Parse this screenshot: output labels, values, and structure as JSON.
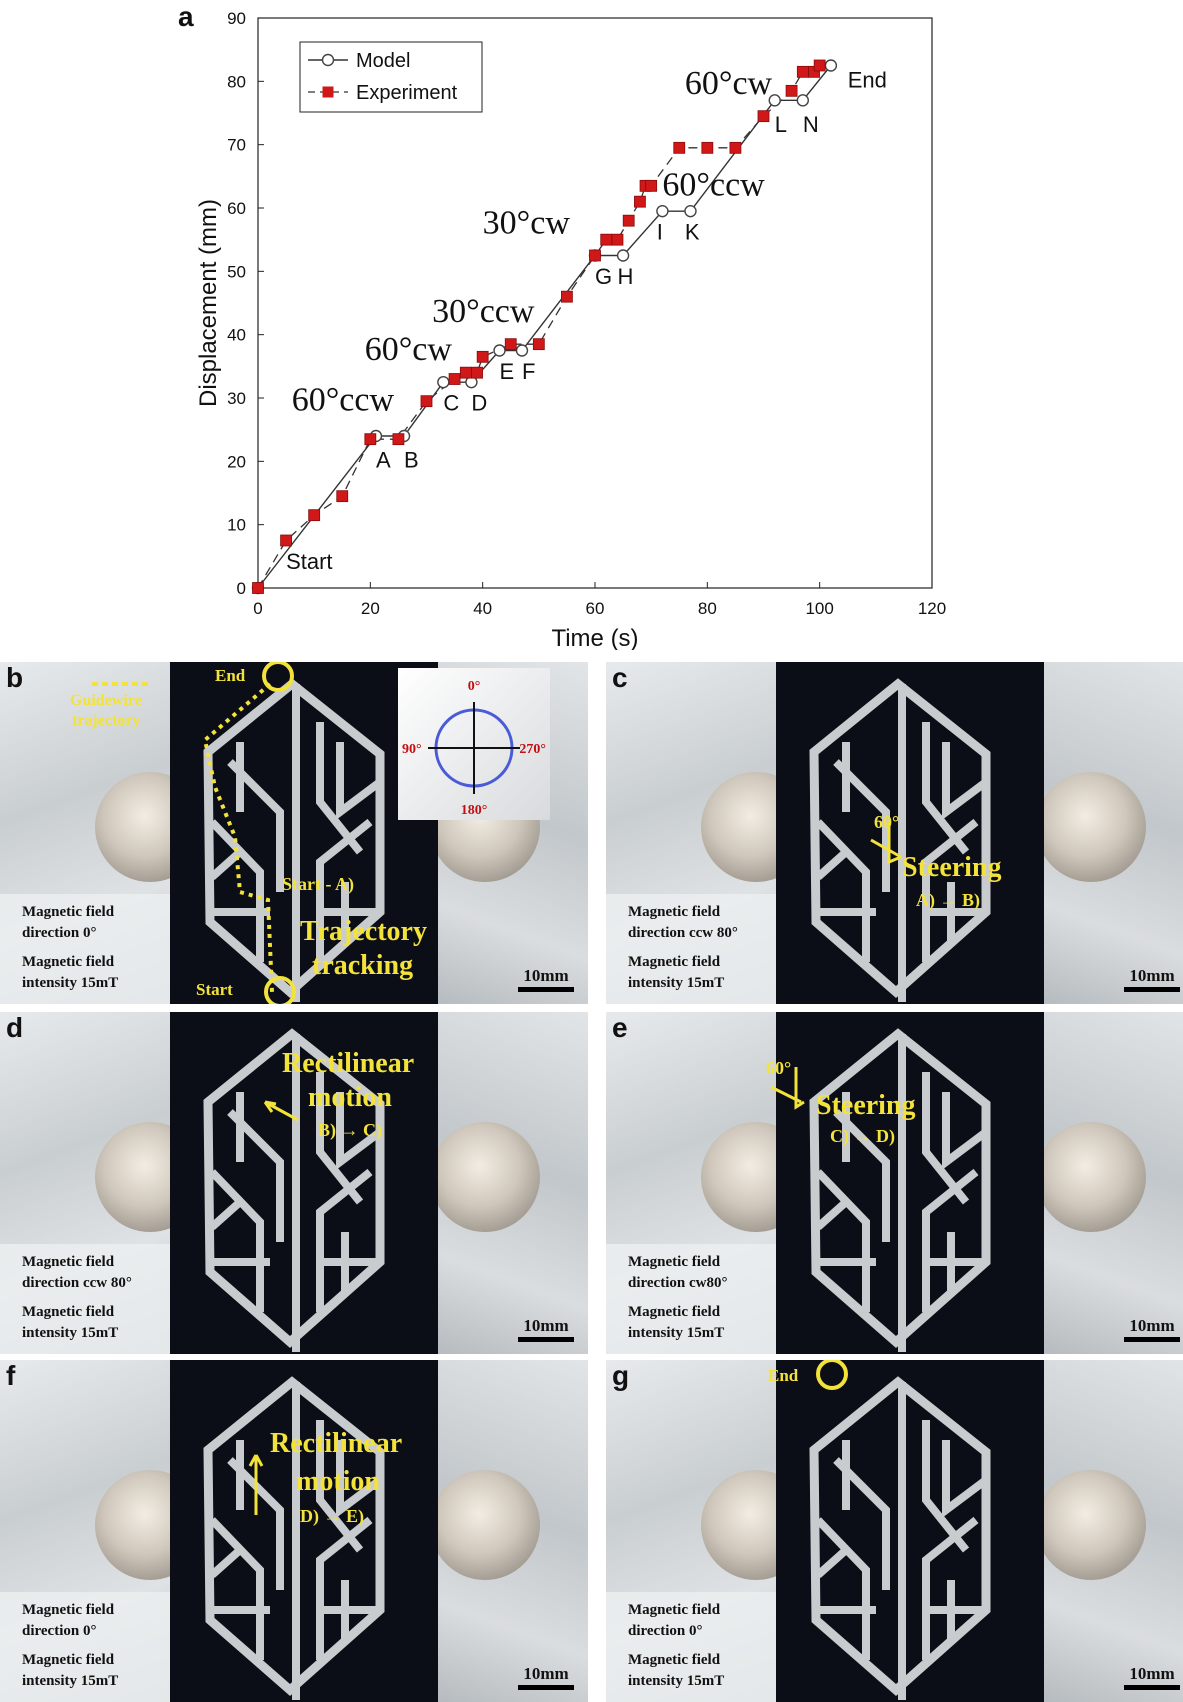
{
  "figure": {
    "panel_a_label": "a",
    "panels": [
      {
        "id": "b",
        "label": "b",
        "field_direction": "Magnetic field\ndirection 0°",
        "field_intensity": "Magnetic field\nintensity 15mT",
        "scale": "10mm",
        "annotations": [
          "End",
          "Guidewire",
          "trajectory",
          "Start - A)",
          "Trajectory",
          "tracking",
          "Start"
        ],
        "compass": {
          "top": "0°",
          "left": "90°",
          "right": "270°",
          "bottom": "180°"
        }
      },
      {
        "id": "c",
        "label": "c",
        "field_direction": "Magnetic field\ndirection ccw 80°",
        "field_intensity": "Magnetic field\nintensity 15mT",
        "scale": "10mm",
        "annotations": [
          "60°",
          "Steering",
          "A) → B)"
        ]
      },
      {
        "id": "d",
        "label": "d",
        "field_direction": "Magnetic field\ndirection ccw 80°",
        "field_intensity": "Magnetic field\nintensity 15mT",
        "scale": "10mm",
        "annotations": [
          "Rectilinear",
          "motion",
          "B) → C)"
        ]
      },
      {
        "id": "e",
        "label": "e",
        "field_direction": "Magnetic field\ndirection cw80°",
        "field_intensity": "Magnetic field\nintensity 15mT",
        "scale": "10mm",
        "annotations": [
          "60°",
          "Steering",
          "C) → D)"
        ]
      },
      {
        "id": "f",
        "label": "f",
        "field_direction": "Magnetic field\ndirection 0°",
        "field_intensity": "Magnetic field\nintensity 15mT",
        "scale": "10mm",
        "annotations": [
          "Rectilinear",
          "motion",
          "D) → E)"
        ]
      },
      {
        "id": "g",
        "label": "g",
        "field_direction": "Magnetic field\ndirection 0°",
        "field_intensity": "Magnetic field\nintensity 15mT",
        "scale": "10mm",
        "annotations": [
          "End"
        ]
      }
    ]
  },
  "chart_data": {
    "type": "line",
    "title": "",
    "xlabel": "Time (s)",
    "ylabel": "Displacement (mm)",
    "xlim": [
      0,
      120
    ],
    "ylim": [
      0,
      90
    ],
    "xticks": [
      0,
      20,
      40,
      60,
      80,
      100,
      120
    ],
    "yticks": [
      0,
      10,
      20,
      30,
      40,
      50,
      60,
      70,
      80,
      90
    ],
    "grid": true,
    "legend_position": "top-left",
    "series": [
      {
        "name": "Model",
        "style": "solid line, open circle markers",
        "color": "#444444",
        "x": [
          0,
          21,
          26,
          33,
          38,
          43,
          47,
          60,
          65,
          72,
          77,
          92,
          97,
          102
        ],
        "y": [
          0,
          24,
          24,
          32.5,
          32.5,
          37.5,
          37.5,
          52.5,
          52.5,
          59.5,
          59.5,
          77,
          77,
          82.5
        ]
      },
      {
        "name": "Experiment",
        "style": "dashed line, red square markers",
        "color": "#d01818",
        "x": [
          0,
          5,
          10,
          15,
          20,
          25,
          30,
          35,
          37,
          39,
          40,
          45,
          50,
          55,
          60,
          62,
          64,
          66,
          68,
          69,
          70,
          75,
          80,
          85,
          90,
          95,
          97,
          99,
          100
        ],
        "y": [
          0,
          7.5,
          11.5,
          14.5,
          23.5,
          23.5,
          29.5,
          33,
          34,
          34,
          36.5,
          38.5,
          38.5,
          46,
          52.5,
          55,
          55,
          58,
          61,
          63.5,
          63.5,
          69.5,
          69.5,
          69.5,
          74.5,
          78.5,
          81.5,
          81.5,
          82.5
        ]
      }
    ],
    "annotations": [
      {
        "text": "Start",
        "x": 5,
        "y": 3
      },
      {
        "text": "60°ccw",
        "x": 6,
        "y": 28
      },
      {
        "text": "A",
        "x": 21,
        "y": 19
      },
      {
        "text": "B",
        "x": 26,
        "y": 19
      },
      {
        "text": "60°cw",
        "x": 19,
        "y": 36
      },
      {
        "text": "C",
        "x": 33,
        "y": 28
      },
      {
        "text": "D",
        "x": 38,
        "y": 28
      },
      {
        "text": "30°ccw",
        "x": 31,
        "y": 42
      },
      {
        "text": "E",
        "x": 43,
        "y": 33
      },
      {
        "text": "F",
        "x": 47,
        "y": 33
      },
      {
        "text": "30°cw",
        "x": 40,
        "y": 56
      },
      {
        "text": "G",
        "x": 60,
        "y": 48
      },
      {
        "text": "H",
        "x": 64,
        "y": 48
      },
      {
        "text": "60°ccw",
        "x": 72,
        "y": 62
      },
      {
        "text": "I",
        "x": 71,
        "y": 55
      },
      {
        "text": "K",
        "x": 76,
        "y": 55
      },
      {
        "text": "60°cw",
        "x": 76,
        "y": 78
      },
      {
        "text": "L",
        "x": 92,
        "y": 72
      },
      {
        "text": "N",
        "x": 97,
        "y": 72
      },
      {
        "text": "End",
        "x": 105,
        "y": 79
      }
    ]
  }
}
